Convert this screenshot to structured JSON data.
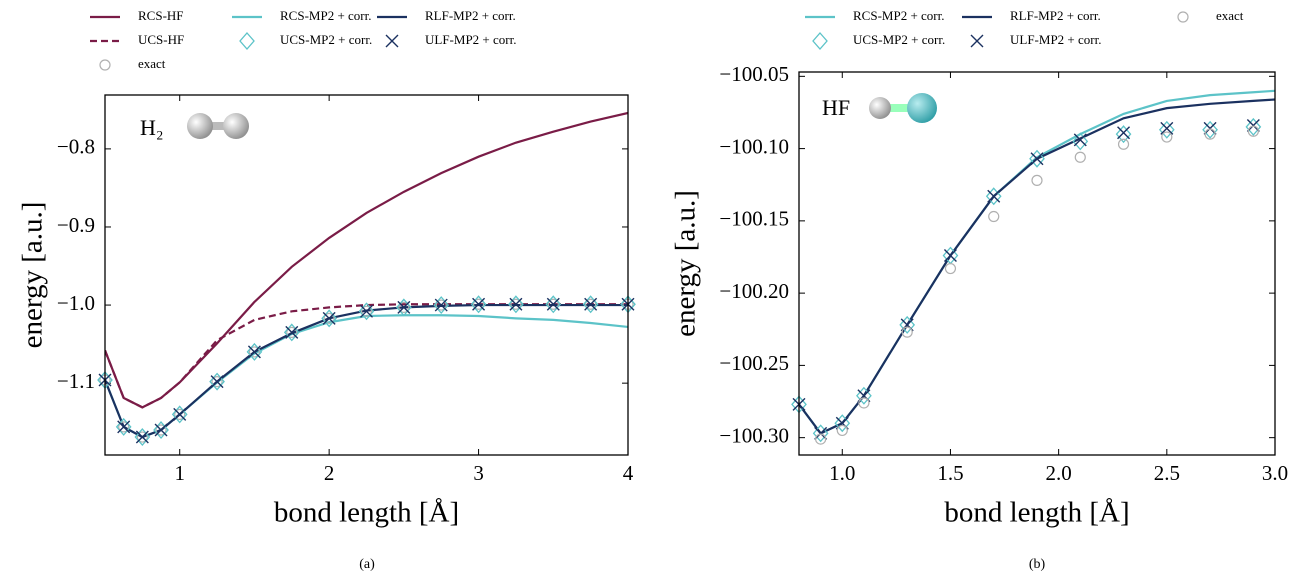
{
  "chart_data": [
    {
      "type": "line",
      "annotation": "H₂",
      "caption": "(a)",
      "xlabel": "bond length [Å]",
      "ylabel": "energy [a.u.]",
      "xlim": [
        0.5,
        4
      ],
      "ylim": [
        -1.192,
        -0.731
      ],
      "xticks": [
        1,
        2,
        3,
        4
      ],
      "yticks": [
        {
          "value": -1.1,
          "label": "−1.1"
        },
        {
          "value": -1.0,
          "label": "−1.0"
        },
        {
          "value": -0.9,
          "label": "−0.9"
        },
        {
          "value": -0.8,
          "label": "−0.8"
        }
      ],
      "series": [
        {
          "name": "RCS-HF",
          "color": "#7a1c47",
          "line": "solid",
          "marker": "none",
          "x": [
            0.5,
            0.625,
            0.75,
            0.875,
            1.0,
            1.25,
            1.5,
            1.75,
            2.0,
            2.25,
            2.5,
            2.75,
            3.0,
            3.25,
            3.5,
            3.75,
            4.0
          ],
          "values": [
            -1.058,
            -1.119,
            -1.131,
            -1.119,
            -1.099,
            -1.049,
            -0.996,
            -0.951,
            -0.914,
            -0.882,
            -0.855,
            -0.831,
            -0.81,
            -0.792,
            -0.778,
            -0.765,
            -0.754
          ]
        },
        {
          "name": "UCS-HF",
          "color": "#7a1c47",
          "line": "dashed",
          "marker": "none",
          "x": [
            0.5,
            0.625,
            0.75,
            0.875,
            1.0,
            1.25,
            1.5,
            1.75,
            2.0,
            2.25,
            2.5,
            2.75,
            3.0,
            3.25,
            3.5,
            3.75,
            4.0
          ],
          "values": [
            -1.058,
            -1.119,
            -1.131,
            -1.119,
            -1.099,
            -1.045,
            -1.019,
            -1.008,
            -1.003,
            -1.0,
            -0.999,
            -0.999,
            -0.999,
            -0.999,
            -0.999,
            -0.999,
            -0.999
          ]
        },
        {
          "name": "exact",
          "color": "#b0b0b0",
          "line": "none",
          "marker": "circle",
          "x": [
            0.5,
            0.625,
            0.75,
            0.875,
            1.0,
            1.25,
            1.5,
            1.75,
            2.0,
            2.25,
            2.5,
            2.75,
            3.0,
            3.25,
            3.5,
            3.75,
            4.0
          ],
          "values": [
            -1.096,
            -1.156,
            -1.169,
            -1.16,
            -1.14,
            -1.098,
            -1.06,
            -1.035,
            -1.017,
            -1.008,
            -1.003,
            -1.0,
            -0.999,
            -0.999,
            -0.999,
            -0.999,
            -0.999
          ]
        },
        {
          "name": "RCS-MP2 + corr.",
          "color": "#5cc3c8",
          "line": "solid",
          "marker": "none",
          "x": [
            0.5,
            0.625,
            0.75,
            0.875,
            1.0,
            1.25,
            1.5,
            1.75,
            2.0,
            2.25,
            2.5,
            2.75,
            3.0,
            3.25,
            3.5,
            3.75,
            4.0
          ],
          "values": [
            -1.096,
            -1.156,
            -1.169,
            -1.16,
            -1.14,
            -1.099,
            -1.062,
            -1.037,
            -1.022,
            -1.014,
            -1.013,
            -1.013,
            -1.014,
            -1.017,
            -1.019,
            -1.023,
            -1.028
          ]
        },
        {
          "name": "UCS-MP2 + corr.",
          "color": "#5cc3c8",
          "line": "none",
          "marker": "diamond",
          "x": [
            0.5,
            0.625,
            0.75,
            0.875,
            1.0,
            1.25,
            1.5,
            1.75,
            2.0,
            2.25,
            2.5,
            2.75,
            3.0,
            3.25,
            3.5,
            3.75,
            4.0
          ],
          "values": [
            -1.096,
            -1.156,
            -1.169,
            -1.16,
            -1.14,
            -1.098,
            -1.06,
            -1.035,
            -1.017,
            -1.008,
            -1.003,
            -1.0,
            -0.999,
            -0.999,
            -0.999,
            -0.999,
            -0.999
          ]
        },
        {
          "name": "RLF-MP2 + corr.",
          "color": "#1b3160",
          "line": "solid",
          "marker": "none",
          "x": [
            0.5,
            0.625,
            0.75,
            0.875,
            1.0,
            1.25,
            1.5,
            1.75,
            2.0,
            2.25,
            2.5,
            2.75,
            3.0,
            3.25,
            3.5,
            3.75,
            4.0
          ],
          "values": [
            -1.096,
            -1.156,
            -1.169,
            -1.16,
            -1.14,
            -1.098,
            -1.06,
            -1.036,
            -1.017,
            -1.007,
            -1.003,
            -1.001,
            -1.0,
            -1.0,
            -1.0,
            -1.0,
            -1.0
          ]
        },
        {
          "name": "ULF-MP2 + corr.",
          "color": "#1b3160",
          "line": "none",
          "marker": "x",
          "x": [
            0.5,
            0.625,
            0.75,
            0.875,
            1.0,
            1.25,
            1.5,
            1.75,
            2.0,
            2.25,
            2.5,
            2.75,
            3.0,
            3.25,
            3.5,
            3.75,
            4.0
          ],
          "values": [
            -1.096,
            -1.156,
            -1.169,
            -1.16,
            -1.14,
            -1.098,
            -1.06,
            -1.035,
            -1.017,
            -1.008,
            -1.003,
            -1.0,
            -0.999,
            -0.999,
            -0.999,
            -0.999,
            -0.999
          ]
        }
      ]
    },
    {
      "type": "line",
      "annotation": "HF",
      "caption": "(b)",
      "xlabel": "bond length [Å]",
      "ylabel": "energy [a.u.]",
      "xlim": [
        0.8,
        3.0
      ],
      "ylim": [
        -100.312,
        -100.047
      ],
      "xticks": [
        {
          "value": 1.0,
          "label": "1.0"
        },
        {
          "value": 1.5,
          "label": "1.5"
        },
        {
          "value": 2.0,
          "label": "2.0"
        },
        {
          "value": 2.5,
          "label": "2.5"
        },
        {
          "value": 3.0,
          "label": "3.0"
        }
      ],
      "yticks": [
        {
          "value": -100.3,
          "label": "−100.30"
        },
        {
          "value": -100.25,
          "label": "−100.25"
        },
        {
          "value": -100.2,
          "label": "−100.20"
        },
        {
          "value": -100.15,
          "label": "−100.15"
        },
        {
          "value": -100.1,
          "label": "−100.10"
        },
        {
          "value": -100.05,
          "label": "−100.05"
        }
      ],
      "series": [
        {
          "name": "RCS-MP2 + corr.",
          "color": "#5cc3c8",
          "line": "solid",
          "marker": "none",
          "x": [
            0.8,
            0.9,
            1.0,
            1.1,
            1.3,
            1.5,
            1.7,
            1.9,
            2.1,
            2.3,
            2.5,
            2.7,
            2.9,
            3.0
          ],
          "values": [
            -100.277,
            -100.297,
            -100.29,
            -100.271,
            -100.222,
            -100.174,
            -100.133,
            -100.106,
            -100.09,
            -100.076,
            -100.067,
            -100.063,
            -100.061,
            -100.06
          ]
        },
        {
          "name": "UCS-MP2 + corr.",
          "color": "#5cc3c8",
          "line": "none",
          "marker": "diamond",
          "x": [
            0.8,
            0.9,
            1.0,
            1.1,
            1.3,
            1.5,
            1.7,
            1.9,
            2.1,
            2.3,
            2.5,
            2.7,
            2.9
          ],
          "values": [
            -100.277,
            -100.297,
            -100.29,
            -100.271,
            -100.222,
            -100.174,
            -100.133,
            -100.107,
            -100.095,
            -100.09,
            -100.087,
            -100.087,
            -100.085
          ]
        },
        {
          "name": "RLF-MP2 + corr.",
          "color": "#1b3160",
          "line": "solid",
          "marker": "none",
          "x": [
            0.8,
            0.9,
            1.0,
            1.1,
            1.3,
            1.5,
            1.7,
            1.9,
            2.1,
            2.3,
            2.5,
            2.7,
            2.9,
            3.0
          ],
          "values": [
            -100.277,
            -100.297,
            -100.29,
            -100.271,
            -100.222,
            -100.174,
            -100.133,
            -100.107,
            -100.093,
            -100.079,
            -100.072,
            -100.069,
            -100.067,
            -100.066
          ]
        },
        {
          "name": "ULF-MP2 + corr.",
          "color": "#1b3160",
          "line": "none",
          "marker": "x",
          "x": [
            0.8,
            0.9,
            1.0,
            1.1,
            1.3,
            1.5,
            1.7,
            1.9,
            2.1,
            2.3,
            2.5,
            2.7,
            2.9
          ],
          "values": [
            -100.277,
            -100.297,
            -100.29,
            -100.271,
            -100.222,
            -100.174,
            -100.133,
            -100.107,
            -100.094,
            -100.089,
            -100.086,
            -100.086,
            -100.084
          ]
        },
        {
          "name": "exact",
          "color": "#b0b0b0",
          "line": "none",
          "marker": "circle",
          "x": [
            0.9,
            1.0,
            1.1,
            1.3,
            1.5,
            1.7,
            1.9,
            2.1,
            2.3,
            2.5,
            2.7,
            2.9
          ],
          "values": [
            -100.301,
            -100.295,
            -100.276,
            -100.227,
            -100.183,
            -100.147,
            -100.122,
            -100.106,
            -100.097,
            -100.092,
            -100.09,
            -100.088
          ]
        }
      ]
    }
  ]
}
